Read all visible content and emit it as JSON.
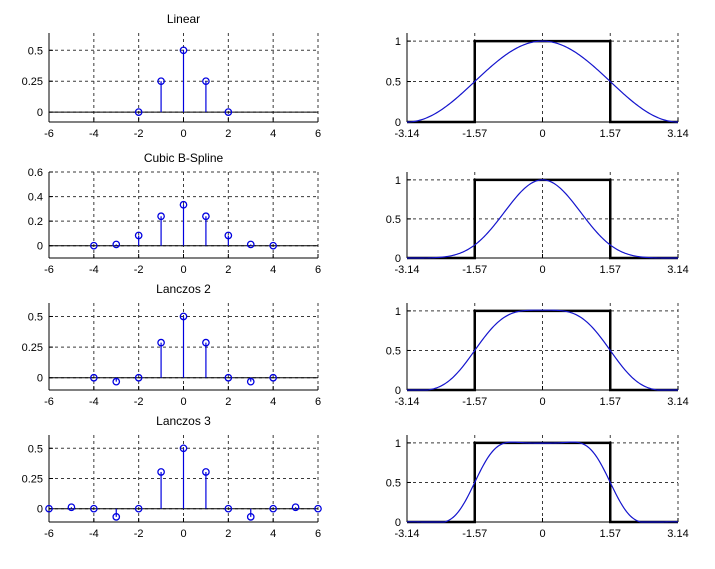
{
  "colors": {
    "stem_blue": "#0000e0",
    "curve_blue": "#1414cd",
    "axis_black": "#000000",
    "grid_gray": "#3a3a3a",
    "background": "#ffffff"
  },
  "chart_data": [
    {
      "kernel": {
        "type": "stem",
        "title": "Linear",
        "xlim": [
          -6,
          6
        ],
        "ylim": [
          -0.08,
          0.64
        ],
        "xticks": [
          "-6",
          "-4",
          "-2",
          "0",
          "2",
          "4",
          "6"
        ],
        "xtick_vals": [
          -6,
          -4,
          -2,
          0,
          2,
          4,
          6
        ],
        "yticks": [
          "0",
          "0.25",
          "0.5"
        ],
        "ytick_vals": [
          0,
          0.25,
          0.5
        ],
        "x": [
          -2,
          -1,
          0,
          1,
          2
        ],
        "y": [
          0,
          0.25,
          0.5,
          0.25,
          0
        ]
      },
      "response": {
        "type": "line",
        "xlim": [
          -3.14,
          3.14
        ],
        "ylim": [
          0,
          1.1
        ],
        "xticks": [
          "-3.14",
          "-1.57",
          "0",
          "1.57",
          "3.14"
        ],
        "xtick_vals": [
          -3.14,
          -1.57,
          0,
          1.57,
          3.14
        ],
        "yticks": [
          "0",
          "0.5",
          "1"
        ],
        "ytick_vals": [
          0,
          0.5,
          1
        ],
        "ideal_cutoff": 1.57,
        "ideal_gain": 1,
        "coeffs": [
          0.5,
          0.25
        ]
      }
    },
    {
      "kernel": {
        "type": "stem",
        "title": "Cubic B-Spline",
        "xlim": [
          -6,
          6
        ],
        "ylim": [
          -0.1,
          0.6
        ],
        "xticks": [
          "-6",
          "-4",
          "-2",
          "0",
          "2",
          "4",
          "6"
        ],
        "xtick_vals": [
          -6,
          -4,
          -2,
          0,
          2,
          4,
          6
        ],
        "yticks": [
          "0",
          "0.2",
          "0.4",
          "0.6"
        ],
        "ytick_vals": [
          0,
          0.2,
          0.4,
          0.6
        ],
        "x": [
          -4,
          -3,
          -2,
          -1,
          0,
          1,
          2,
          3,
          4
        ],
        "y": [
          0,
          0.0104,
          0.0833,
          0.2396,
          0.3333,
          0.2396,
          0.0833,
          0.0104,
          0
        ]
      },
      "response": {
        "type": "line",
        "xlim": [
          -3.14,
          3.14
        ],
        "ylim": [
          0,
          1.1
        ],
        "xticks": [
          "-3.14",
          "-1.57",
          "0",
          "1.57",
          "3.14"
        ],
        "xtick_vals": [
          -3.14,
          -1.57,
          0,
          1.57,
          3.14
        ],
        "yticks": [
          "0",
          "0.5",
          "1"
        ],
        "ytick_vals": [
          0,
          0.5,
          1
        ],
        "ideal_cutoff": 1.57,
        "ideal_gain": 1,
        "coeffs": [
          0.3333,
          0.2396,
          0.0833,
          0.0104
        ]
      }
    },
    {
      "kernel": {
        "type": "stem",
        "title": "Lanczos 2",
        "xlim": [
          -6,
          6
        ],
        "ylim": [
          -0.1,
          0.61
        ],
        "xticks": [
          "-6",
          "-4",
          "-2",
          "0",
          "2",
          "4",
          "6"
        ],
        "xtick_vals": [
          -6,
          -4,
          -2,
          0,
          2,
          4,
          6
        ],
        "yticks": [
          "0",
          "0.25",
          "0.5"
        ],
        "ytick_vals": [
          0,
          0.25,
          0.5
        ],
        "x": [
          -4,
          -3,
          -2,
          -1,
          0,
          1,
          2,
          3,
          4
        ],
        "y": [
          0,
          -0.0318,
          0,
          0.2865,
          0.5,
          0.2865,
          0,
          -0.0318,
          0
        ]
      },
      "response": {
        "type": "line",
        "xlim": [
          -3.14,
          3.14
        ],
        "ylim": [
          0,
          1.1
        ],
        "xticks": [
          "-3.14",
          "-1.57",
          "0",
          "1.57",
          "3.14"
        ],
        "xtick_vals": [
          -3.14,
          -1.57,
          0,
          1.57,
          3.14
        ],
        "yticks": [
          "0",
          "0.5",
          "1"
        ],
        "ytick_vals": [
          0,
          0.5,
          1
        ],
        "ideal_cutoff": 1.57,
        "ideal_gain": 1,
        "coeffs": [
          0.5,
          0.2865,
          0,
          -0.0318
        ]
      }
    },
    {
      "kernel": {
        "type": "stem",
        "title": "Lanczos 3",
        "xlim": [
          -6,
          6
        ],
        "ylim": [
          -0.11,
          0.61
        ],
        "xticks": [
          "-6",
          "-4",
          "-2",
          "0",
          "2",
          "4",
          "6"
        ],
        "xtick_vals": [
          -6,
          -4,
          -2,
          0,
          2,
          4,
          6
        ],
        "yticks": [
          "0",
          "0.25",
          "0.5"
        ],
        "ytick_vals": [
          0,
          0.25,
          0.5
        ],
        "x": [
          -6,
          -5,
          -4,
          -3,
          -2,
          -1,
          0,
          1,
          2,
          3,
          4,
          5,
          6
        ],
        "y": [
          0,
          0.0122,
          0,
          -0.0675,
          0,
          0.304,
          0.5,
          0.304,
          0,
          -0.0675,
          0,
          0.0122,
          0
        ]
      },
      "response": {
        "type": "line",
        "xlim": [
          -3.14,
          3.14
        ],
        "ylim": [
          0,
          1.1
        ],
        "xticks": [
          "-3.14",
          "-1.57",
          "0",
          "1.57",
          "3.14"
        ],
        "xtick_vals": [
          -3.14,
          -1.57,
          0,
          1.57,
          3.14
        ],
        "yticks": [
          "0",
          "0.5",
          "1"
        ],
        "ytick_vals": [
          0,
          0.5,
          1
        ],
        "ideal_cutoff": 1.57,
        "ideal_gain": 1,
        "coeffs": [
          0.5,
          0.304,
          0,
          -0.0675,
          0,
          0.0122
        ]
      }
    }
  ]
}
